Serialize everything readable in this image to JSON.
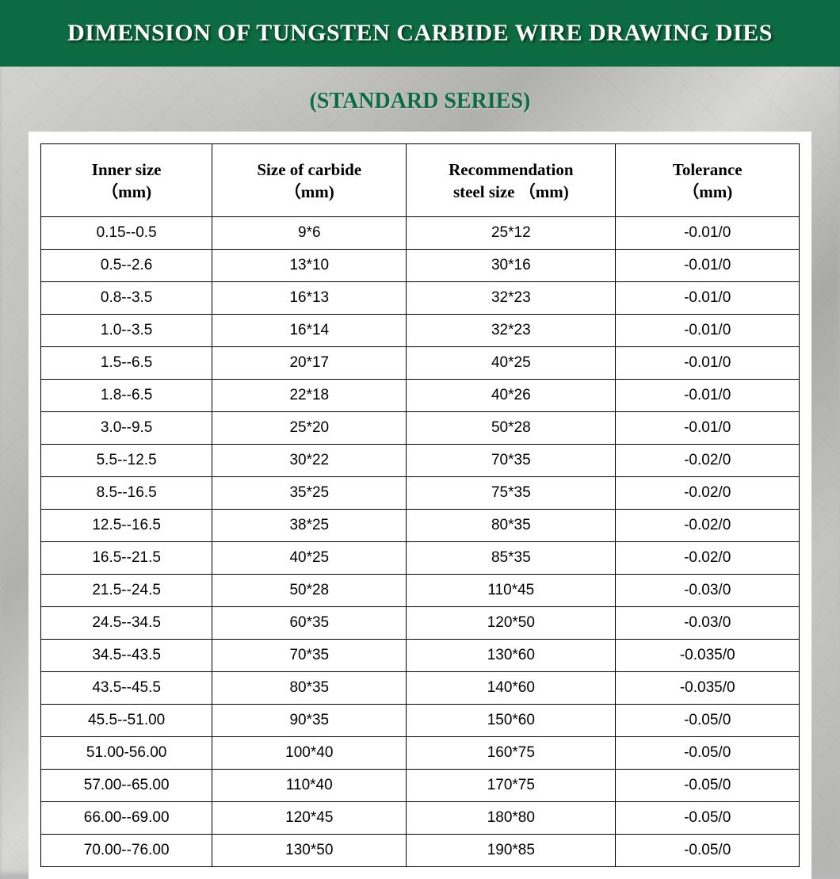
{
  "header": {
    "title": "DIMENSION OF TUNGSTEN CARBIDE WIRE DRAWING DIES",
    "subtitle": "(STANDARD SERIES)",
    "bar_color": "#0d6b42",
    "title_color": "#ffffff",
    "subtitle_color": "#0d6b42",
    "title_fontsize": 30,
    "subtitle_fontsize": 28
  },
  "table": {
    "type": "table",
    "background_color": "#ffffff",
    "border_color": "#000000",
    "header_fontsize": 21,
    "cell_fontsize": 19,
    "header_font": "Georgia serif bold",
    "cell_font": "Arial sans-serif",
    "column_widths_pct": [
      22.6,
      25.6,
      27.6,
      24.2
    ],
    "columns": [
      "Inner size （mm)",
      "Size of carbide （mm)",
      "Recommendation steel size （mm)",
      "Tolerance （mm)"
    ],
    "columns_line1": [
      "Inner size",
      "Size of carbide",
      "Recommendation",
      "Tolerance"
    ],
    "columns_line2": [
      "（mm)",
      "（mm)",
      "steel size （mm)",
      "（mm)"
    ],
    "rows": [
      [
        "0.15--0.5",
        "9*6",
        "25*12",
        "-0.01/0"
      ],
      [
        "0.5--2.6",
        "13*10",
        "30*16",
        "-0.01/0"
      ],
      [
        "0.8--3.5",
        "16*13",
        "32*23",
        "-0.01/0"
      ],
      [
        "1.0--3.5",
        "16*14",
        "32*23",
        "-0.01/0"
      ],
      [
        "1.5--6.5",
        "20*17",
        "40*25",
        "-0.01/0"
      ],
      [
        "1.8--6.5",
        "22*18",
        "40*26",
        "-0.01/0"
      ],
      [
        "3.0--9.5",
        "25*20",
        "50*28",
        "-0.01/0"
      ],
      [
        "5.5--12.5",
        "30*22",
        "70*35",
        "-0.02/0"
      ],
      [
        "8.5--16.5",
        "35*25",
        "75*35",
        "-0.02/0"
      ],
      [
        "12.5--16.5",
        "38*25",
        "80*35",
        "-0.02/0"
      ],
      [
        "16.5--21.5",
        "40*25",
        "85*35",
        "-0.02/0"
      ],
      [
        "21.5--24.5",
        "50*28",
        "110*45",
        "-0.03/0"
      ],
      [
        "24.5--34.5",
        "60*35",
        "120*50",
        "-0.03/0"
      ],
      [
        "34.5--43.5",
        "70*35",
        "130*60",
        "-0.035/0"
      ],
      [
        "43.5--45.5",
        "80*35",
        "140*60",
        "-0.035/0"
      ],
      [
        "45.5--51.00",
        "90*35",
        "150*60",
        "-0.05/0"
      ],
      [
        "51.00-56.00",
        "100*40",
        "160*75",
        "-0.05/0"
      ],
      [
        "57.00--65.00",
        "110*40",
        "170*75",
        "-0.05/0"
      ],
      [
        "66.00--69.00",
        "120*45",
        "180*80",
        "-0.05/0"
      ],
      [
        "70.00--76.00",
        "130*50",
        "190*85",
        "-0.05/0"
      ]
    ]
  }
}
